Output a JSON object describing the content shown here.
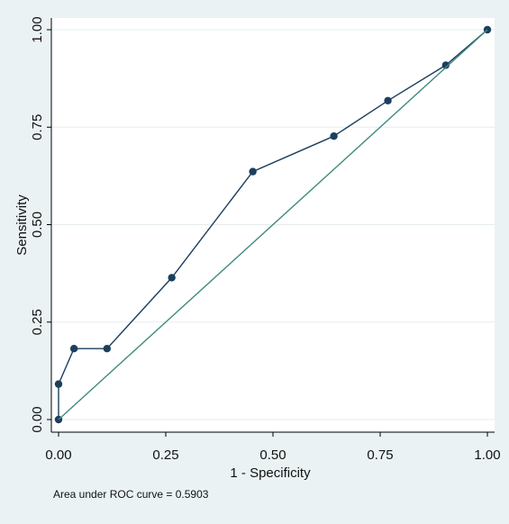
{
  "chart_data": {
    "type": "line",
    "xlabel": "1 - Specificity",
    "ylabel": "Sensitivity",
    "xlim": [
      0,
      1
    ],
    "ylim": [
      0,
      1
    ],
    "x_ticks": [
      0,
      0.25,
      0.5,
      0.75,
      1
    ],
    "x_tick_labels": [
      "0.00",
      "0.25",
      "0.50",
      "0.75",
      "1.00"
    ],
    "y_ticks": [
      0,
      0.25,
      0.5,
      0.75,
      1
    ],
    "y_tick_labels": [
      "0.00",
      "0.25",
      "0.50",
      "0.75",
      "1.00"
    ],
    "grid": "horizontal",
    "series": [
      {
        "x": [
          0,
          0,
          0.036,
          0.113,
          0.264,
          0.453,
          0.642,
          0.768,
          0.903,
          1.0
        ],
        "y": [
          0,
          0.091,
          0.182,
          0.182,
          0.364,
          0.636,
          0.727,
          0.818,
          0.909,
          1.0
        ],
        "color": "#1c3f5e",
        "markers": true
      },
      {
        "x": [
          0,
          1
        ],
        "y": [
          0,
          1
        ],
        "color": "#3f8a7e",
        "markers": false
      }
    ],
    "annotation": "Area under ROC curve = 0.5903"
  }
}
